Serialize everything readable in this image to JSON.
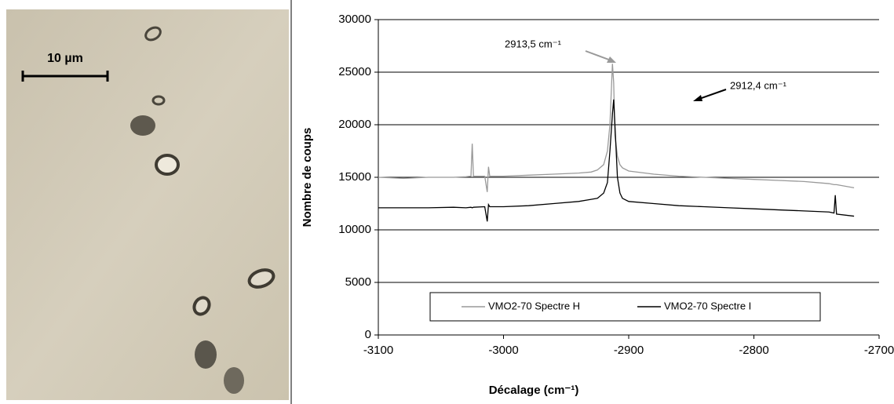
{
  "photo": {
    "scale_label": "10 µm"
  },
  "chart_data": {
    "type": "line",
    "x_label": "Décalage (cm⁻¹)",
    "y_label": "Nombre de coups",
    "x": [
      -3100,
      -3080,
      -3060,
      -3040,
      -3030,
      -3026,
      -3025,
      -3024,
      -3015,
      -3013,
      -3012,
      -3011,
      -3000,
      -2980,
      -2960,
      -2940,
      -2930,
      -2925,
      -2920,
      -2917,
      -2915,
      -2913,
      -2912,
      -2911,
      -2909,
      -2907,
      -2905,
      -2900,
      -2880,
      -2860,
      -2840,
      -2820,
      -2800,
      -2780,
      -2760,
      -2740,
      -2736,
      -2735,
      -2734,
      -2720
    ],
    "series": [
      {
        "name": "VMO2-70 Spectre H",
        "color": "#999999",
        "values": [
          15000,
          14900,
          15000,
          15000,
          15050,
          15100,
          18200,
          15100,
          15100,
          13600,
          16000,
          15100,
          15100,
          15200,
          15300,
          15400,
          15500,
          15700,
          16200,
          17500,
          20000,
          25800,
          24000,
          19000,
          17000,
          16200,
          15900,
          15600,
          15300,
          15100,
          15000,
          14900,
          14800,
          14700,
          14600,
          14400,
          14300,
          14300,
          14300,
          14000
        ]
      },
      {
        "name": "VMO2-70 Spectre I",
        "color": "#000000",
        "values": [
          12100,
          12100,
          12100,
          12150,
          12100,
          12150,
          12100,
          12150,
          12200,
          10800,
          12400,
          12200,
          12200,
          12300,
          12500,
          12700,
          12900,
          13000,
          13500,
          14500,
          17500,
          21000,
          22400,
          20000,
          15000,
          13500,
          13000,
          12700,
          12500,
          12300,
          12200,
          12100,
          12000,
          11900,
          11800,
          11700,
          11600,
          13300,
          11500,
          11300
        ]
      }
    ],
    "annotations": [
      "2913,5 cm⁻¹",
      "2912,4 cm⁻¹"
    ],
    "xlim": [
      -3100,
      -2700
    ],
    "xticks": [
      -3100,
      -3000,
      -2900,
      -2800,
      -2700
    ],
    "ylim": [
      0,
      30000
    ],
    "yticks": [
      0,
      5000,
      10000,
      15000,
      20000,
      25000,
      30000
    ],
    "grid": true,
    "legend": "bottom"
  }
}
